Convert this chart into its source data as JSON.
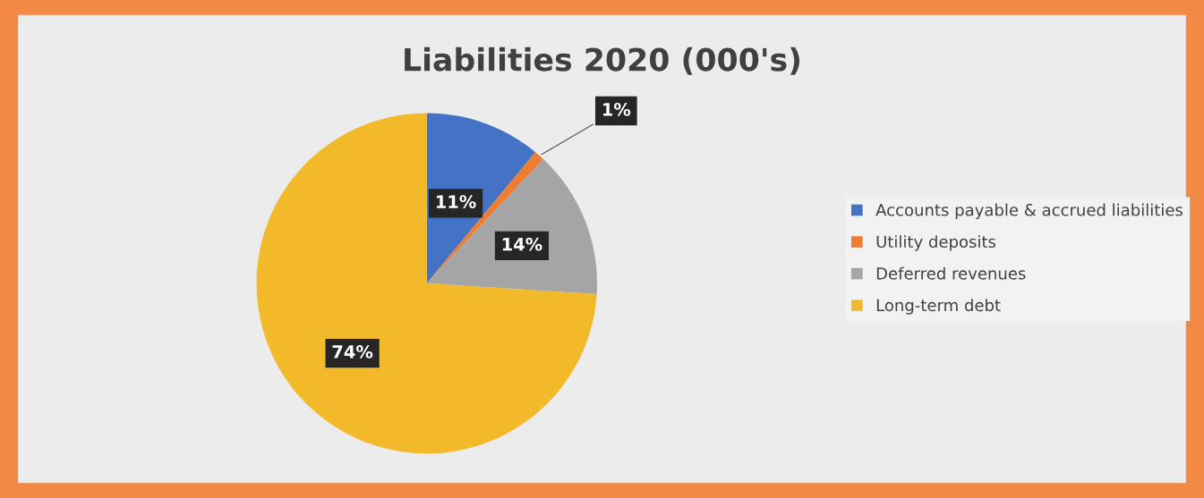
{
  "chart_data": {
    "type": "pie",
    "title": "Liabilities 2020 (000's)",
    "categories": [
      "Accounts payable & accrued liabilities",
      "Utility deposits",
      "Deferred revenues",
      "Long-term debt"
    ],
    "values": [
      11,
      1,
      14,
      74
    ],
    "colors": [
      "#4472c4",
      "#ed7d31",
      "#a5a5a5",
      "#f2b92b"
    ],
    "value_labels": [
      "11%",
      "1%",
      "14%",
      "74%"
    ],
    "legend": "right"
  }
}
